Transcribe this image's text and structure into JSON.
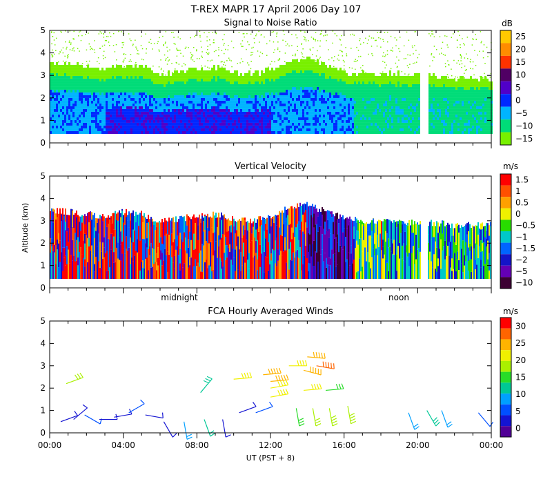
{
  "header": {
    "title": "T-REX  MAPR 17 April 2006 Day 107"
  },
  "panels": [
    {
      "id": "snr",
      "title": "Signal to Noise Ratio",
      "unit": "dB",
      "colorbar_labels": [
        "25",
        "20",
        "15",
        "10",
        "5",
        "0",
        "−5",
        "−10",
        "−15"
      ],
      "colors": [
        "#ffc800",
        "#ff8c00",
        "#ff3200",
        "#500064",
        "#5000c8",
        "#0028ff",
        "#00b4ff",
        "#00dc78",
        "#78f000"
      ]
    },
    {
      "id": "velocity",
      "title": "Vertical Velocity",
      "unit": "m/s",
      "ylabel": "Altitude (km)",
      "colorbar_labels": [
        "1.5",
        "1",
        "0.5",
        "0",
        "−0.5",
        "−1",
        "−1.5",
        "−2",
        "−5",
        "−10"
      ],
      "colors": [
        "#ff0000",
        "#ff5000",
        "#ffa000",
        "#f0f000",
        "#28dc00",
        "#00c8c8",
        "#0064ff",
        "#1414c8",
        "#6400b4",
        "#3c0032"
      ],
      "time_markers": [
        "midnight",
        "noon"
      ]
    },
    {
      "id": "winds",
      "title": "FCA Hourly Averaged Winds",
      "unit": "m/s",
      "colorbar_labels": [
        "30",
        "25",
        "20",
        "15",
        "10",
        "5",
        "0"
      ],
      "colors": [
        "#ff0000",
        "#ff6400",
        "#ffb400",
        "#f0f000",
        "#aaf000",
        "#28dc28",
        "#00c896",
        "#00a0ff",
        "#0050ff",
        "#1414d2",
        "#500096"
      ]
    }
  ],
  "chart_data": [
    {
      "type": "heatmap",
      "title": "Signal to Noise Ratio",
      "ylim": [
        0,
        5
      ],
      "yticks": [
        "0",
        "1",
        "2",
        "3",
        "4",
        "5"
      ],
      "xlim_hours": [
        0,
        24
      ],
      "colorbar": {
        "unit": "dB",
        "levels": [
          25,
          20,
          15,
          10,
          5,
          0,
          -5,
          -10,
          -15
        ]
      },
      "profile_top_km": [
        3.5,
        3.4,
        3.3,
        3.2,
        3.4,
        3.3,
        3.0,
        3.1,
        3.2,
        3.3,
        3.1,
        3.0,
        3.2,
        3.6,
        3.7,
        3.4,
        3.1,
        3.0,
        3.0,
        3.0,
        2.9,
        2.9,
        2.8,
        2.8,
        2.8
      ]
    },
    {
      "type": "heatmap",
      "title": "Vertical Velocity",
      "ylabel": "Altitude (km)",
      "ylim": [
        0,
        5
      ],
      "yticks": [
        "0",
        "1",
        "2",
        "3",
        "4",
        "5"
      ],
      "xlim_hours": [
        0,
        24
      ],
      "colorbar": {
        "unit": "m/s",
        "levels": [
          1.5,
          1,
          0.5,
          0,
          -0.5,
          -1,
          -1.5,
          -2,
          -5,
          -10
        ]
      },
      "annotations": [
        "midnight",
        "noon"
      ]
    },
    {
      "type": "scatter",
      "title": "FCA Hourly Averaged Winds",
      "xlabel": "UT  (PST + 8)",
      "ylim": [
        0,
        5
      ],
      "yticks": [
        "0",
        "1",
        "2",
        "3",
        "4",
        "5"
      ],
      "xlim_hours": [
        0,
        24
      ],
      "xticks": [
        "00:00",
        "04:00",
        "08:00",
        "12:00",
        "16:00",
        "20:00",
        "00:00"
      ],
      "colorbar": {
        "unit": "m/s",
        "levels": [
          30,
          25,
          20,
          15,
          10,
          5,
          0
        ]
      },
      "barbs": [
        {
          "t": 0.6,
          "alt": 0.5,
          "speed": 4,
          "dir": 250
        },
        {
          "t": 1.3,
          "alt": 0.6,
          "speed": 3,
          "dir": 230
        },
        {
          "t": 1.9,
          "alt": 0.8,
          "speed": 5,
          "dir": 300
        },
        {
          "t": 2.7,
          "alt": 0.6,
          "speed": 4,
          "dir": 270
        },
        {
          "t": 3.5,
          "alt": 0.7,
          "speed": 3,
          "dir": 260
        },
        {
          "t": 4.3,
          "alt": 0.9,
          "speed": 5,
          "dir": 240
        },
        {
          "t": 5.2,
          "alt": 0.8,
          "speed": 4,
          "dir": 280
        },
        {
          "t": 6.2,
          "alt": 0.5,
          "speed": 3,
          "dir": 330
        },
        {
          "t": 7.3,
          "alt": 0.5,
          "speed": 10,
          "dir": 350
        },
        {
          "t": 8.4,
          "alt": 0.6,
          "speed": 12,
          "dir": 340
        },
        {
          "t": 9.4,
          "alt": 0.6,
          "speed": 3,
          "dir": 350
        },
        {
          "t": 10.3,
          "alt": 0.9,
          "speed": 4,
          "dir": 250
        },
        {
          "t": 11.2,
          "alt": 0.9,
          "speed": 7,
          "dir": 250
        },
        {
          "t": 0.9,
          "alt": 2.2,
          "speed": 17,
          "dir": 250
        },
        {
          "t": 8.2,
          "alt": 1.8,
          "speed": 13,
          "dir": 220
        },
        {
          "t": 10.0,
          "alt": 2.4,
          "speed": 20,
          "dir": 265
        },
        {
          "t": 11.6,
          "alt": 2.6,
          "speed": 24,
          "dir": 265
        },
        {
          "t": 12.0,
          "alt": 2.3,
          "speed": 24,
          "dir": 265
        },
        {
          "t": 12.0,
          "alt": 2.0,
          "speed": 21,
          "dir": 260
        },
        {
          "t": 12.0,
          "alt": 1.6,
          "speed": 20,
          "dir": 260
        },
        {
          "t": 13.0,
          "alt": 3.0,
          "speed": 21,
          "dir": 270
        },
        {
          "t": 14.0,
          "alt": 3.4,
          "speed": 25,
          "dir": 275
        },
        {
          "t": 14.5,
          "alt": 3.0,
          "speed": 27,
          "dir": 280
        },
        {
          "t": 13.8,
          "alt": 2.8,
          "speed": 24,
          "dir": 285
        },
        {
          "t": 13.8,
          "alt": 1.9,
          "speed": 20,
          "dir": 265
        },
        {
          "t": 15.0,
          "alt": 1.9,
          "speed": 16,
          "dir": 265
        },
        {
          "t": 13.4,
          "alt": 1.1,
          "speed": 14,
          "dir": 350
        },
        {
          "t": 14.3,
          "alt": 1.1,
          "speed": 17,
          "dir": 350
        },
        {
          "t": 15.2,
          "alt": 1.1,
          "speed": 19,
          "dir": 350
        },
        {
          "t": 16.2,
          "alt": 1.2,
          "speed": 18,
          "dir": 350
        },
        {
          "t": 19.5,
          "alt": 0.9,
          "speed": 10,
          "dir": 340
        },
        {
          "t": 20.5,
          "alt": 1.0,
          "speed": 13,
          "dir": 330
        },
        {
          "t": 21.3,
          "alt": 1.0,
          "speed": 8,
          "dir": 340
        },
        {
          "t": 23.3,
          "alt": 0.9,
          "speed": 7,
          "dir": 320
        }
      ]
    }
  ]
}
